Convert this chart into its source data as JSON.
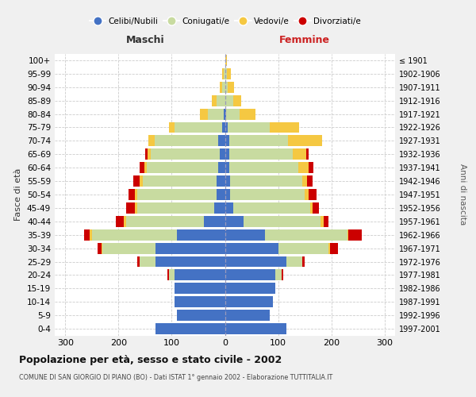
{
  "age_groups": [
    "0-4",
    "5-9",
    "10-14",
    "15-19",
    "20-24",
    "25-29",
    "30-34",
    "35-39",
    "40-44",
    "45-49",
    "50-54",
    "55-59",
    "60-64",
    "65-69",
    "70-74",
    "75-79",
    "80-84",
    "85-89",
    "90-94",
    "95-99",
    "100+"
  ],
  "birth_years": [
    "1997-2001",
    "1992-1996",
    "1987-1991",
    "1982-1986",
    "1977-1981",
    "1972-1976",
    "1967-1971",
    "1962-1966",
    "1957-1961",
    "1952-1956",
    "1947-1951",
    "1942-1946",
    "1937-1941",
    "1932-1936",
    "1927-1931",
    "1922-1926",
    "1917-1921",
    "1912-1916",
    "1907-1911",
    "1902-1906",
    "≤ 1901"
  ],
  "males_celibi": [
    130,
    90,
    95,
    95,
    95,
    130,
    130,
    90,
    40,
    20,
    15,
    15,
    12,
    10,
    12,
    5,
    2,
    0,
    0,
    0,
    0
  ],
  "males_coniugati": [
    0,
    0,
    0,
    0,
    10,
    30,
    100,
    160,
    145,
    145,
    150,
    140,
    135,
    130,
    120,
    90,
    30,
    15,
    5,
    2,
    0
  ],
  "males_vedovi": [
    0,
    0,
    0,
    0,
    0,
    0,
    2,
    5,
    5,
    5,
    5,
    5,
    5,
    5,
    12,
    10,
    15,
    10,
    5,
    3,
    0
  ],
  "males_divorziati": [
    0,
    0,
    0,
    0,
    3,
    5,
    8,
    10,
    15,
    15,
    12,
    12,
    8,
    5,
    0,
    0,
    0,
    0,
    0,
    0,
    0
  ],
  "females_celibi": [
    115,
    85,
    90,
    95,
    95,
    115,
    100,
    75,
    35,
    15,
    10,
    10,
    8,
    8,
    8,
    5,
    2,
    0,
    0,
    0,
    0
  ],
  "females_coniugati": [
    0,
    0,
    0,
    0,
    12,
    30,
    95,
    155,
    145,
    145,
    140,
    135,
    130,
    120,
    110,
    80,
    25,
    15,
    5,
    3,
    0
  ],
  "females_vedovi": [
    0,
    0,
    0,
    0,
    0,
    0,
    2,
    2,
    5,
    5,
    8,
    10,
    20,
    25,
    65,
    55,
    30,
    15,
    12,
    8,
    3
  ],
  "females_divorziati": [
    0,
    0,
    0,
    0,
    3,
    5,
    15,
    25,
    10,
    12,
    15,
    10,
    8,
    5,
    0,
    0,
    0,
    0,
    0,
    0,
    0
  ],
  "colors": {
    "celibi": "#4472c4",
    "coniugati": "#c8dba0",
    "vedovi": "#f5c842",
    "divorziati": "#cc0000"
  },
  "title": "Popolazione per età, sesso e stato civile - 2002",
  "subtitle": "COMUNE DI SAN GIORGIO DI PIANO (BO) - Dati ISTAT 1° gennaio 2002 - Elaborazione TUTTITALIA.IT",
  "xlabel_left": "Maschi",
  "xlabel_right": "Femmine",
  "ylabel_left": "Fasce di età",
  "ylabel_right": "Anni di nascita",
  "xlim": 320,
  "bg_color": "#f0f0f0",
  "plot_bg": "#ffffff"
}
